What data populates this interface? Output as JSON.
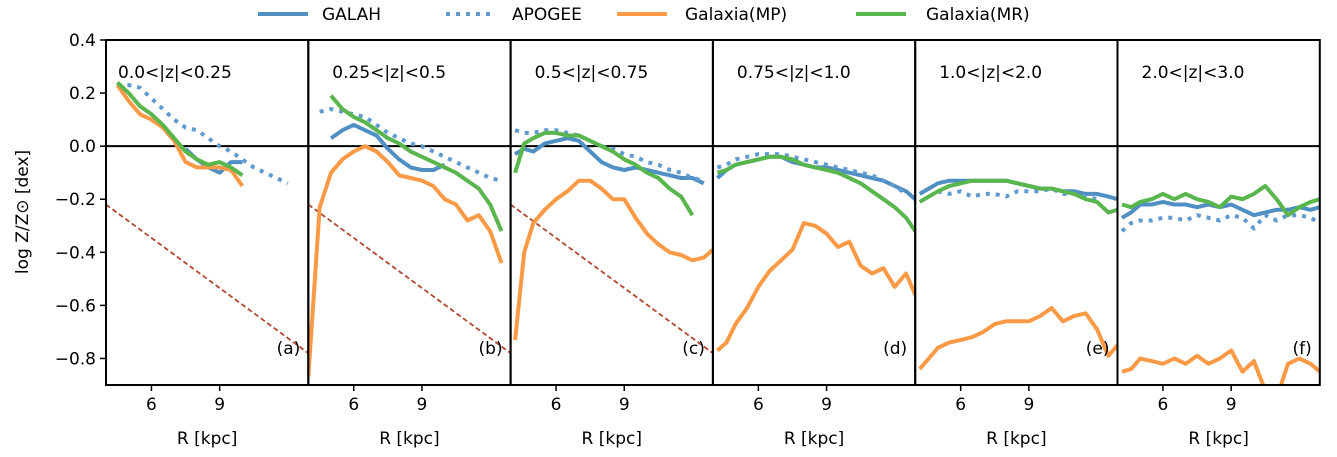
{
  "colors": {
    "galah": "#4f8fc4",
    "apogee": "#5f9ad0",
    "galaxia_mp": "#fb9a46",
    "galaxia_mr": "#59b64c",
    "reference": "#b2472f",
    "axis": "#000000"
  },
  "legend": [
    "GALAH",
    "APOGEE",
    "Galaxia(MP)",
    "Galaxia(MR)"
  ],
  "ylabel": "log Z/Z⊙ [dex]",
  "xlabel": "R [kpc]",
  "chart_data": [
    {
      "type": "line",
      "panel": "(a)",
      "title": "0.0<|z|<0.25",
      "ylim": [
        -0.9,
        0.4
      ],
      "xlim": [
        4.0,
        12.9
      ],
      "series": [
        {
          "name": "GALAH",
          "x": [
            7.5,
            8.0,
            8.5,
            9.0,
            9.5,
            10.0
          ],
          "y": [
            -0.01,
            -0.05,
            -0.08,
            -0.1,
            -0.06,
            -0.06
          ]
        },
        {
          "name": "APOGEE",
          "x": [
            4.5,
            5.0,
            5.5,
            6.0,
            6.5,
            7.0,
            7.5,
            8.0,
            8.5,
            9.0,
            9.5,
            10.0,
            10.5,
            11.0,
            11.5,
            12.0
          ],
          "y": [
            0.23,
            0.23,
            0.22,
            0.18,
            0.14,
            0.1,
            0.07,
            0.06,
            0.03,
            0.0,
            -0.02,
            -0.05,
            -0.08,
            -0.1,
            -0.12,
            -0.14
          ]
        },
        {
          "name": "Galaxia(MP)",
          "x": [
            4.5,
            5.0,
            5.5,
            6.0,
            6.5,
            7.0,
            7.5,
            8.0,
            8.5,
            9.0,
            9.5,
            10.0
          ],
          "y": [
            0.23,
            0.17,
            0.12,
            0.1,
            0.07,
            0.02,
            -0.06,
            -0.08,
            -0.08,
            -0.08,
            -0.09,
            -0.15
          ]
        },
        {
          "name": "Galaxia(MR)",
          "x": [
            4.5,
            5.0,
            5.5,
            6.0,
            6.5,
            7.0,
            7.5,
            8.0,
            8.5,
            9.0,
            9.5,
            10.0
          ],
          "y": [
            0.24,
            0.2,
            0.15,
            0.12,
            0.08,
            0.03,
            -0.02,
            -0.05,
            -0.07,
            -0.06,
            -0.08,
            -0.11
          ]
        }
      ],
      "reference_line": {
        "x": [
          4.0,
          12.9
        ],
        "y": [
          -0.22,
          -0.78
        ]
      },
      "yticks": [
        0.4,
        0.2,
        0.0,
        -0.2,
        -0.4,
        -0.6,
        -0.8
      ],
      "xticks": [
        6,
        9
      ]
    },
    {
      "type": "line",
      "panel": "(b)",
      "title": "0.25<|z|<0.5",
      "ylim": [
        -0.9,
        0.4
      ],
      "xlim": [
        4.0,
        12.9
      ],
      "series": [
        {
          "name": "GALAH",
          "x": [
            5.0,
            5.5,
            6.0,
            6.5,
            7.0,
            7.5,
            8.0,
            8.5,
            9.0,
            9.5,
            10.0
          ],
          "y": [
            0.03,
            0.06,
            0.08,
            0.06,
            0.04,
            -0.01,
            -0.05,
            -0.08,
            -0.09,
            -0.09,
            -0.07
          ]
        },
        {
          "name": "APOGEE",
          "x": [
            4.5,
            5.0,
            5.5,
            6.0,
            6.5,
            7.0,
            7.5,
            8.0,
            8.5,
            9.0,
            9.5,
            10.0,
            10.5,
            11.0,
            11.5,
            12.0,
            12.5
          ],
          "y": [
            0.13,
            0.14,
            0.13,
            0.12,
            0.11,
            0.08,
            0.05,
            0.03,
            0.01,
            0.0,
            -0.02,
            -0.04,
            -0.06,
            -0.08,
            -0.1,
            -0.12,
            -0.13
          ]
        },
        {
          "name": "Galaxia(MP)",
          "x": [
            4.0,
            4.5,
            5.0,
            5.5,
            6.0,
            6.5,
            7.0,
            7.5,
            8.0,
            8.5,
            9.0,
            9.5,
            10.0,
            10.5,
            11.0,
            11.5,
            12.0,
            12.5
          ],
          "y": [
            -0.87,
            -0.23,
            -0.1,
            -0.05,
            -0.02,
            0.0,
            -0.02,
            -0.06,
            -0.11,
            -0.12,
            -0.13,
            -0.15,
            -0.2,
            -0.22,
            -0.28,
            -0.26,
            -0.32,
            -0.44
          ]
        },
        {
          "name": "Galaxia(MR)",
          "x": [
            5.0,
            5.5,
            6.0,
            6.5,
            7.0,
            7.5,
            8.0,
            8.5,
            9.0,
            9.5,
            10.0,
            10.5,
            11.0,
            11.5,
            12.0,
            12.5
          ],
          "y": [
            0.19,
            0.14,
            0.11,
            0.09,
            0.06,
            0.03,
            0.01,
            -0.02,
            -0.04,
            -0.06,
            -0.08,
            -0.1,
            -0.13,
            -0.16,
            -0.22,
            -0.32
          ]
        }
      ],
      "reference_line": {
        "x": [
          4.0,
          12.9
        ],
        "y": [
          -0.22,
          -0.78
        ]
      },
      "xticks": [
        6,
        9
      ]
    },
    {
      "type": "line",
      "panel": "(c)",
      "title": "0.5<|z|<0.75",
      "ylim": [
        -0.9,
        0.4
      ],
      "xlim": [
        4.0,
        12.9
      ],
      "series": [
        {
          "name": "GALAH",
          "x": [
            4.2,
            4.6,
            5.0,
            5.5,
            6.0,
            6.5,
            7.0,
            7.5,
            8.0,
            8.5,
            9.0,
            9.5,
            10.0,
            10.5,
            11.0,
            11.5,
            12.0,
            12.5
          ],
          "y": [
            -0.03,
            -0.01,
            -0.02,
            0.01,
            0.02,
            0.03,
            0.02,
            -0.02,
            -0.06,
            -0.08,
            -0.09,
            -0.08,
            -0.09,
            -0.1,
            -0.11,
            -0.12,
            -0.12,
            -0.14
          ]
        },
        {
          "name": "APOGEE",
          "x": [
            4.2,
            4.6,
            5.0,
            5.5,
            6.0,
            6.5,
            7.0,
            7.5,
            8.0,
            8.5,
            9.0,
            9.5,
            10.0,
            10.5,
            11.0,
            11.5,
            12.0,
            12.5
          ],
          "y": [
            0.06,
            0.05,
            0.05,
            0.06,
            0.06,
            0.05,
            0.04,
            0.02,
            0.0,
            -0.01,
            -0.03,
            -0.04,
            -0.06,
            -0.07,
            -0.09,
            -0.1,
            -0.12,
            -0.13
          ]
        },
        {
          "name": "Galaxia(MP)",
          "x": [
            4.2,
            4.6,
            5.0,
            5.5,
            6.0,
            6.5,
            7.0,
            7.5,
            8.0,
            8.5,
            9.0,
            9.5,
            10.0,
            10.5,
            11.0,
            11.5,
            12.0,
            12.5,
            12.9
          ],
          "y": [
            -0.73,
            -0.4,
            -0.29,
            -0.24,
            -0.2,
            -0.17,
            -0.13,
            -0.13,
            -0.16,
            -0.2,
            -0.2,
            -0.27,
            -0.33,
            -0.37,
            -0.4,
            -0.41,
            -0.43,
            -0.42,
            -0.39
          ]
        },
        {
          "name": "Galaxia(MR)",
          "x": [
            4.2,
            4.6,
            5.0,
            5.5,
            6.0,
            6.5,
            7.0,
            7.5,
            8.0,
            8.5,
            9.0,
            9.5,
            10.0,
            10.5,
            11.0,
            11.5,
            12.0
          ],
          "y": [
            -0.1,
            0.01,
            0.03,
            0.05,
            0.05,
            0.04,
            0.04,
            0.02,
            0.0,
            -0.02,
            -0.05,
            -0.07,
            -0.1,
            -0.12,
            -0.16,
            -0.19,
            -0.26
          ]
        }
      ],
      "reference_line": {
        "x": [
          4.0,
          12.9
        ],
        "y": [
          -0.22,
          -0.78
        ]
      },
      "xticks": [
        6,
        9
      ]
    },
    {
      "type": "line",
      "panel": "(d)",
      "title": "0.75<|z|<1.0",
      "ylim": [
        -0.9,
        0.4
      ],
      "xlim": [
        4.0,
        12.9
      ],
      "series": [
        {
          "name": "GALAH",
          "x": [
            4.2,
            4.6,
            5.0,
            5.5,
            6.0,
            6.5,
            7.0,
            7.5,
            8.0,
            8.5,
            9.0,
            9.5,
            10.0,
            10.5,
            11.0,
            11.5,
            12.0,
            12.5,
            12.9
          ],
          "y": [
            -0.12,
            -0.09,
            -0.07,
            -0.06,
            -0.05,
            -0.04,
            -0.04,
            -0.06,
            -0.07,
            -0.08,
            -0.08,
            -0.09,
            -0.1,
            -0.11,
            -0.12,
            -0.13,
            -0.15,
            -0.17,
            -0.2
          ]
        },
        {
          "name": "APOGEE",
          "x": [
            4.2,
            4.6,
            5.0,
            5.5,
            6.0,
            6.5,
            7.0,
            7.5,
            8.0,
            8.5,
            9.0,
            9.5,
            10.0,
            10.5,
            11.0,
            11.5,
            12.0,
            12.5
          ],
          "y": [
            -0.08,
            -0.07,
            -0.05,
            -0.04,
            -0.03,
            -0.03,
            -0.03,
            -0.04,
            -0.05,
            -0.06,
            -0.07,
            -0.08,
            -0.09,
            -0.1,
            -0.11,
            -0.13,
            -0.15,
            -0.18
          ]
        },
        {
          "name": "Galaxia(MP)",
          "x": [
            4.2,
            4.6,
            5.0,
            5.5,
            6.0,
            6.5,
            7.0,
            7.5,
            8.0,
            8.5,
            9.0,
            9.5,
            10.0,
            10.5,
            11.0,
            11.5,
            12.0,
            12.5,
            12.9
          ],
          "y": [
            -0.77,
            -0.74,
            -0.67,
            -0.61,
            -0.53,
            -0.47,
            -0.43,
            -0.39,
            -0.29,
            -0.3,
            -0.33,
            -0.38,
            -0.36,
            -0.45,
            -0.48,
            -0.46,
            -0.53,
            -0.48,
            -0.56
          ]
        },
        {
          "name": "Galaxia(MR)",
          "x": [
            4.2,
            4.6,
            5.0,
            5.5,
            6.0,
            6.5,
            7.0,
            7.5,
            8.0,
            8.5,
            9.0,
            9.5,
            10.0,
            10.5,
            11.0,
            11.5,
            12.0,
            12.5,
            12.9
          ],
          "y": [
            -0.1,
            -0.09,
            -0.07,
            -0.06,
            -0.05,
            -0.04,
            -0.04,
            -0.05,
            -0.07,
            -0.08,
            -0.09,
            -0.1,
            -0.12,
            -0.14,
            -0.17,
            -0.2,
            -0.23,
            -0.27,
            -0.32
          ]
        }
      ],
      "xticks": [
        6,
        9
      ]
    },
    {
      "type": "line",
      "panel": "(e)",
      "title": "1.0<|z|<2.0",
      "ylim": [
        -0.9,
        0.4
      ],
      "xlim": [
        4.0,
        12.9
      ],
      "series": [
        {
          "name": "GALAH",
          "x": [
            4.2,
            4.6,
            5.0,
            5.5,
            6.0,
            6.5,
            7.0,
            7.5,
            8.0,
            8.5,
            9.0,
            9.5,
            10.0,
            10.5,
            11.0,
            11.5,
            12.0,
            12.5,
            12.9
          ],
          "y": [
            -0.18,
            -0.16,
            -0.14,
            -0.13,
            -0.13,
            -0.13,
            -0.13,
            -0.13,
            -0.13,
            -0.14,
            -0.15,
            -0.16,
            -0.16,
            -0.17,
            -0.17,
            -0.18,
            -0.18,
            -0.19,
            -0.2
          ]
        },
        {
          "name": "APOGEE",
          "x": [
            5.0,
            5.5,
            6.0,
            6.5,
            7.0,
            7.5,
            8.0,
            8.5,
            9.0,
            9.5,
            10.0,
            10.5,
            11.0,
            11.5,
            12.0
          ],
          "y": [
            -0.17,
            -0.18,
            -0.17,
            -0.19,
            -0.18,
            -0.18,
            -0.19,
            -0.17,
            -0.17,
            -0.17,
            -0.16,
            -0.18,
            -0.18,
            -0.19,
            -0.2
          ]
        },
        {
          "name": "Galaxia(MP)",
          "x": [
            4.2,
            4.6,
            5.0,
            5.5,
            6.0,
            6.5,
            7.0,
            7.5,
            8.0,
            8.5,
            9.0,
            9.5,
            10.0,
            10.5,
            11.0,
            11.5,
            12.0,
            12.5,
            12.9
          ],
          "y": [
            -0.84,
            -0.8,
            -0.76,
            -0.74,
            -0.73,
            -0.72,
            -0.7,
            -0.67,
            -0.66,
            -0.66,
            -0.66,
            -0.64,
            -0.61,
            -0.66,
            -0.64,
            -0.63,
            -0.69,
            -0.79,
            -0.75
          ]
        },
        {
          "name": "Galaxia(MR)",
          "x": [
            4.2,
            4.6,
            5.0,
            5.5,
            6.0,
            6.5,
            7.0,
            7.5,
            8.0,
            8.5,
            9.0,
            9.5,
            10.0,
            10.5,
            11.0,
            11.5,
            12.0,
            12.5,
            12.9
          ],
          "y": [
            -0.21,
            -0.19,
            -0.17,
            -0.15,
            -0.14,
            -0.13,
            -0.13,
            -0.13,
            -0.13,
            -0.14,
            -0.15,
            -0.16,
            -0.16,
            -0.17,
            -0.18,
            -0.2,
            -0.21,
            -0.25,
            -0.24
          ]
        }
      ],
      "xticks": [
        6,
        9
      ]
    },
    {
      "type": "line",
      "panel": "(f)",
      "title": "2.0<|z|<3.0",
      "ylim": [
        -0.9,
        0.4
      ],
      "xlim": [
        4.0,
        12.9
      ],
      "series": [
        {
          "name": "GALAH",
          "x": [
            4.2,
            4.6,
            5.0,
            5.5,
            6.0,
            6.5,
            7.0,
            7.5,
            8.0,
            8.5,
            9.0,
            9.5,
            10.0,
            10.5,
            11.0,
            11.5,
            12.0,
            12.5,
            12.9
          ],
          "y": [
            -0.27,
            -0.25,
            -0.22,
            -0.22,
            -0.21,
            -0.22,
            -0.22,
            -0.23,
            -0.22,
            -0.23,
            -0.22,
            -0.24,
            -0.26,
            -0.25,
            -0.24,
            -0.24,
            -0.23,
            -0.24,
            -0.23
          ]
        },
        {
          "name": "APOGEE",
          "x": [
            4.2,
            4.6,
            5.0,
            5.5,
            6.0,
            6.5,
            7.0,
            7.5,
            8.0,
            8.5,
            9.0,
            9.5,
            10.0,
            10.5,
            11.0,
            11.5,
            12.0,
            12.5,
            12.9
          ],
          "y": [
            -0.32,
            -0.29,
            -0.28,
            -0.28,
            -0.27,
            -0.27,
            -0.28,
            -0.26,
            -0.27,
            -0.28,
            -0.26,
            -0.27,
            -0.31,
            -0.26,
            -0.28,
            -0.26,
            -0.26,
            -0.27,
            -0.29
          ]
        },
        {
          "name": "Galaxia(MP)",
          "x": [
            4.2,
            4.6,
            5.0,
            5.5,
            6.0,
            6.5,
            7.0,
            7.5,
            8.0,
            8.5,
            9.0,
            9.5,
            10.0,
            10.5,
            11.0,
            11.5,
            12.0,
            12.5,
            12.9
          ],
          "y": [
            -0.85,
            -0.84,
            -0.8,
            -0.81,
            -0.82,
            -0.8,
            -0.82,
            -0.79,
            -0.82,
            -0.8,
            -0.77,
            -0.85,
            -0.81,
            -0.92,
            -0.95,
            -0.82,
            -0.8,
            -0.82,
            -0.85
          ]
        },
        {
          "name": "Galaxia(MR)",
          "x": [
            4.2,
            4.6,
            5.0,
            5.5,
            6.0,
            6.5,
            7.0,
            7.5,
            8.0,
            8.5,
            9.0,
            9.5,
            10.0,
            10.5,
            11.0,
            11.5,
            12.0,
            12.5,
            12.9
          ],
          "y": [
            -0.22,
            -0.23,
            -0.21,
            -0.2,
            -0.18,
            -0.2,
            -0.18,
            -0.2,
            -0.21,
            -0.23,
            -0.19,
            -0.2,
            -0.18,
            -0.15,
            -0.2,
            -0.26,
            -0.23,
            -0.21,
            -0.2
          ]
        }
      ],
      "xticks": [
        6,
        9
      ]
    }
  ]
}
